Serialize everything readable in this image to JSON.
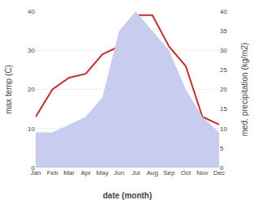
{
  "chart_data": {
    "type": "line",
    "categories": [
      "Jan",
      "Feb",
      "Mar",
      "Apr",
      "May",
      "Jun",
      "Jul",
      "Aug",
      "Sep",
      "Oct",
      "Nov",
      "Dec"
    ],
    "series": [
      {
        "type": "area",
        "axis": "y2",
        "color": "#c8ccee",
        "values": [
          9,
          9,
          11,
          13,
          18,
          35,
          40,
          35,
          30,
          20,
          13,
          9
        ]
      },
      {
        "type": "line",
        "color": "#c03030",
        "values": [
          13,
          20,
          23,
          24,
          29,
          31,
          39,
          39,
          31,
          26,
          13,
          11
        ]
      }
    ],
    "xlabel": "date (month)",
    "ylabel": "max temp (C)",
    "y2label": "med. precipitation (kg/m2)",
    "ylim": [
      0,
      40
    ],
    "yticks": [
      0,
      10,
      20,
      30,
      40
    ],
    "y2lim": [
      0,
      40
    ],
    "y2ticks": [
      0,
      5,
      10,
      15,
      20,
      25,
      30,
      35,
      40
    ],
    "grid": true
  }
}
